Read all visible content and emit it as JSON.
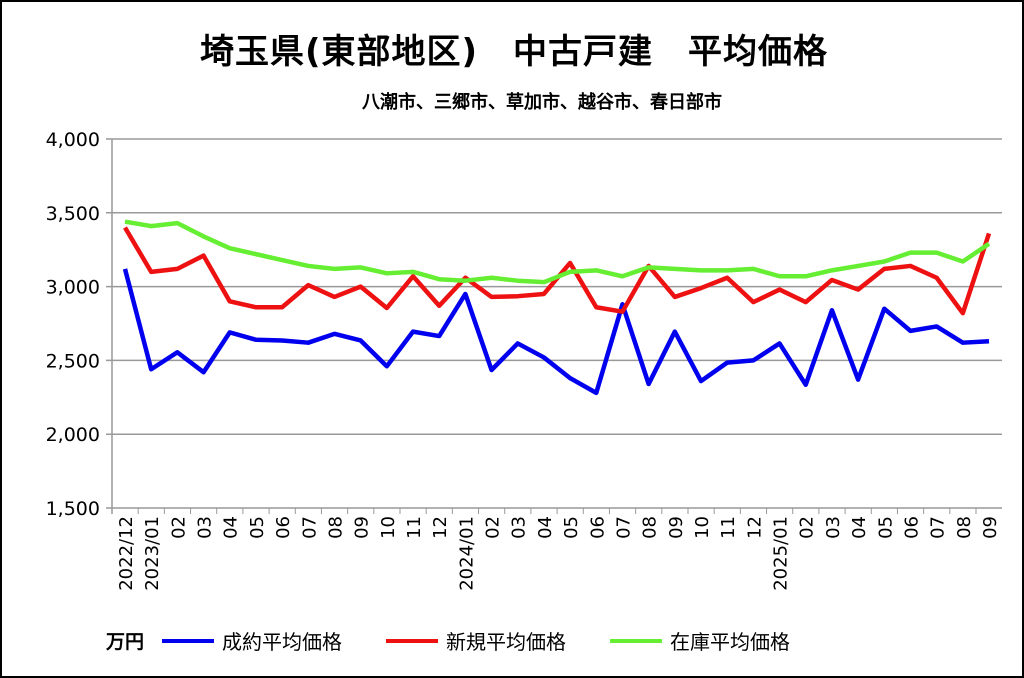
{
  "chart_data": {
    "type": "line",
    "title": "埼玉県(東部地区)　中古戸建　平均価格",
    "subtitle": "八潮市、三郷市、草加市、越谷市、春日部市",
    "unit_label": "万円",
    "ylim": [
      1500,
      4000
    ],
    "yticks": [
      "1,500",
      "2,000",
      "2,500",
      "3,000",
      "3,500",
      "4,000"
    ],
    "ytick_values": [
      1500,
      2000,
      2500,
      3000,
      3500,
      4000
    ],
    "grid": true,
    "legend_position": "bottom",
    "categories": [
      "2022/12",
      "2023/01",
      "02",
      "03",
      "04",
      "05",
      "06",
      "07",
      "08",
      "09",
      "10",
      "11",
      "12",
      "2024/01",
      "02",
      "03",
      "04",
      "05",
      "06",
      "07",
      "08",
      "09",
      "10",
      "11",
      "12",
      "2025/01",
      "02",
      "03",
      "04",
      "05",
      "06",
      "07",
      "08",
      "09"
    ],
    "series": [
      {
        "name": "成約平均価格",
        "color": "#0000ee",
        "values": [
          3120,
          2440,
          2555,
          2420,
          2690,
          2640,
          2635,
          2620,
          2680,
          2635,
          2460,
          2695,
          2665,
          2950,
          2435,
          2615,
          2520,
          2380,
          2280,
          2880,
          2340,
          2695,
          2360,
          2485,
          2500,
          2615,
          2335,
          2840,
          2370,
          2850,
          2700,
          2730,
          2620,
          2630
        ]
      },
      {
        "name": "新規平均価格",
        "color": "#ee1111",
        "values": [
          3400,
          3100,
          3120,
          3210,
          2900,
          2860,
          2860,
          3010,
          2930,
          3000,
          2855,
          3070,
          2870,
          3060,
          2930,
          2935,
          2950,
          3160,
          2860,
          2830,
          3140,
          2930,
          2990,
          3060,
          2895,
          2980,
          2895,
          3045,
          2980,
          3120,
          3140,
          3060,
          2820,
          3360
        ]
      },
      {
        "name": "在庫平均価格",
        "color": "#66ee33",
        "values": [
          3440,
          3410,
          3430,
          3340,
          3260,
          3220,
          3180,
          3140,
          3120,
          3130,
          3090,
          3100,
          3050,
          3040,
          3060,
          3040,
          3030,
          3100,
          3110,
          3070,
          3130,
          3120,
          3110,
          3110,
          3120,
          3070,
          3070,
          3110,
          3140,
          3170,
          3230,
          3230,
          3170,
          3290
        ]
      }
    ]
  }
}
